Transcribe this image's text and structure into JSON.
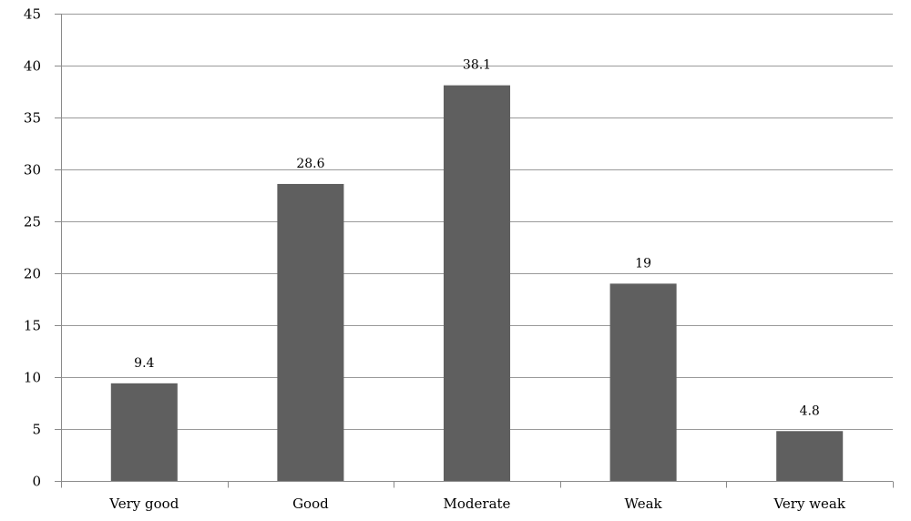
{
  "chart_data": {
    "type": "bar",
    "title": "",
    "xlabel": "",
    "ylabel": "",
    "categories": [
      "Very good",
      "Good",
      "Moderate",
      "Weak",
      "Very weak"
    ],
    "values": [
      9.4,
      28.6,
      38.1,
      19,
      4.8
    ],
    "data_labels": [
      "9.4",
      "28.6",
      "38.1",
      "19",
      "4.8"
    ],
    "ylim": [
      0,
      45
    ],
    "yticks": [
      0,
      5,
      10,
      15,
      20,
      25,
      30,
      35,
      40,
      45
    ],
    "ytick_labels": [
      "0",
      "5",
      "10",
      "15",
      "20",
      "25",
      "30",
      "35",
      "40",
      "45"
    ],
    "grid": true,
    "legend": "none",
    "bar_color": "#5f5f5f"
  }
}
